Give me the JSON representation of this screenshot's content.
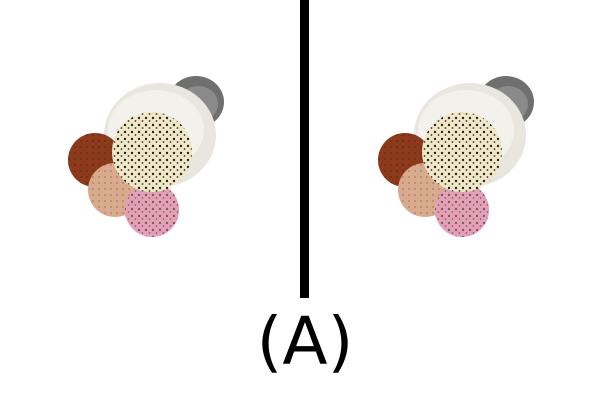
{
  "label": "(A)",
  "objects": [
    {
      "side": "left",
      "depicts": "dessert-cup-icon"
    },
    {
      "side": "right",
      "depicts": "dessert-cup-icon"
    }
  ],
  "colors": {
    "divider": "#000000",
    "cup": "#e9e6df",
    "handle": "#6f6f6f",
    "scoop_chocolate": "#8c3a1c",
    "scoop_vanilla": "#efe7c9",
    "scoop_peach": "#d9ab8e",
    "scoop_strawberry": "#e3a0b6"
  }
}
